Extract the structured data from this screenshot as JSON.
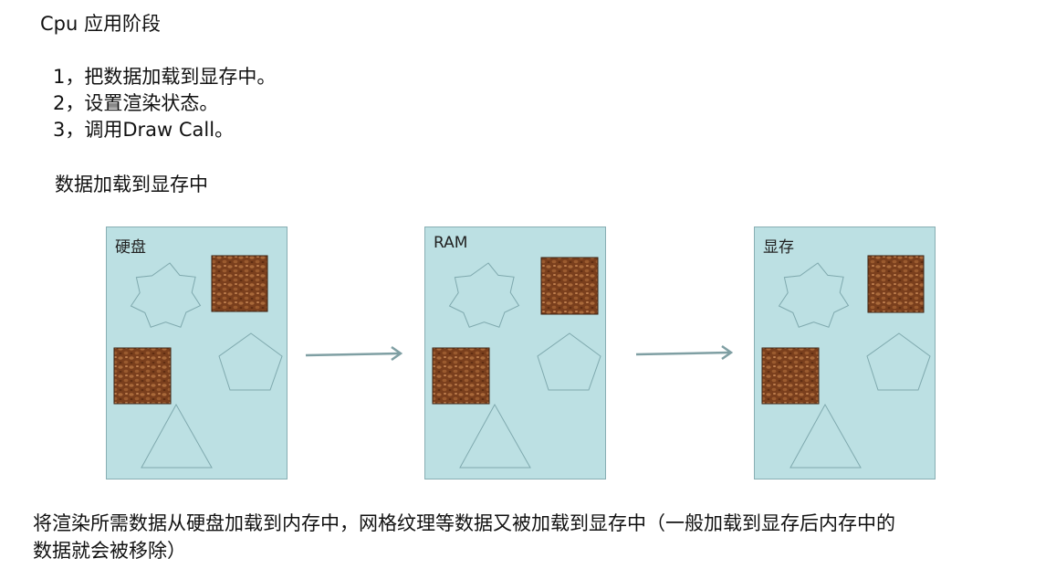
{
  "heading": "Cpu 应用阶段",
  "steps": [
    "1，把数据加载到显存中。",
    "2，设置渲染状态。",
    "3，调用Draw Call。"
  ],
  "subheading": "数据加载到显存中",
  "panels": [
    {
      "label": "硬盘"
    },
    {
      "label": "RAM"
    },
    {
      "label": "显存"
    }
  ],
  "caption_lines": [
    "将渲染所需数据从硬盘加载到内存中，网格纹理等数据又被加载到显存中（一般加载到显存后内存中的",
    "数据就会被移除）"
  ],
  "colors": {
    "panel_fill": "#bce0e3",
    "panel_border": "#88aeb3",
    "arrow": "#7f9fa3",
    "texture": "#7a3f1d"
  }
}
